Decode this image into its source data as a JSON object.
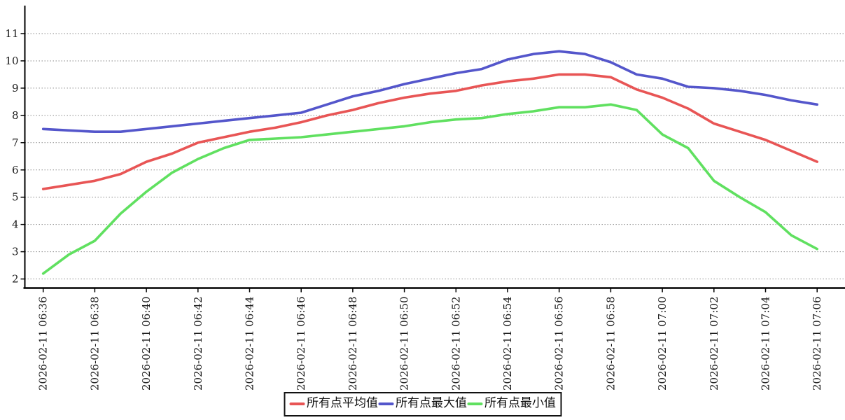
{
  "chart_data": {
    "type": "line",
    "title": "",
    "xlabel": "",
    "ylabel": "",
    "date_prefix": "2026-02-11",
    "x": [
      "06:36",
      "06:37",
      "06:38",
      "06:39",
      "06:40",
      "06:41",
      "06:42",
      "06:43",
      "06:44",
      "06:45",
      "06:46",
      "06:47",
      "06:48",
      "06:49",
      "06:50",
      "06:51",
      "06:52",
      "06:53",
      "06:54",
      "06:55",
      "06:56",
      "06:57",
      "06:58",
      "06:59",
      "07:00",
      "07:01",
      "07:02",
      "07:03",
      "07:04",
      "07:05",
      "07:06"
    ],
    "x_tick_labels": [
      "2026-02-11 06:36",
      "2026-02-11 06:38",
      "2026-02-11 06:40",
      "2026-02-11 06:42",
      "2026-02-11 06:44",
      "2026-02-11 06:46",
      "2026-02-11 06:48",
      "2026-02-11 06:50",
      "2026-02-11 06:52",
      "2026-02-11 06:54",
      "2026-02-11 06:56",
      "2026-02-11 06:58",
      "2026-02-11 07:00",
      "2026-02-11 07:02",
      "2026-02-11 07:04",
      "2026-02-11 07:06"
    ],
    "y_ticks": [
      2,
      3,
      4,
      5,
      6,
      7,
      8,
      9,
      10,
      11
    ],
    "ylim": [
      2,
      11
    ],
    "grid": "horizontal-dashed",
    "legend_position": "bottom-center",
    "series": [
      {
        "name": "所有点平均值",
        "color": "#e85555",
        "values": [
          5.3,
          5.45,
          5.6,
          5.85,
          6.3,
          6.6,
          7.0,
          7.2,
          7.4,
          7.55,
          7.75,
          8.0,
          8.2,
          8.45,
          8.65,
          8.8,
          8.9,
          9.1,
          9.25,
          9.35,
          9.5,
          9.5,
          9.4,
          8.95,
          8.65,
          8.25,
          7.7,
          7.4,
          7.1,
          6.7,
          6.3
        ]
      },
      {
        "name": "所有点最大值",
        "color": "#5456cb",
        "values": [
          7.5,
          7.45,
          7.4,
          7.4,
          7.5,
          7.6,
          7.7,
          7.8,
          7.9,
          8.0,
          8.1,
          8.4,
          8.7,
          8.9,
          9.15,
          9.35,
          9.55,
          9.7,
          10.05,
          10.25,
          10.35,
          10.25,
          9.95,
          9.5,
          9.35,
          9.05,
          9.0,
          8.9,
          8.75,
          8.55,
          8.4
        ]
      },
      {
        "name": "所有点最小值",
        "color": "#60e060",
        "values": [
          2.2,
          2.9,
          3.4,
          4.4,
          5.2,
          5.9,
          6.4,
          6.8,
          7.1,
          7.15,
          7.2,
          7.3,
          7.4,
          7.5,
          7.6,
          7.75,
          7.85,
          7.9,
          8.05,
          8.15,
          8.3,
          8.3,
          8.4,
          8.2,
          7.3,
          6.8,
          5.6,
          5.0,
          4.45,
          3.6,
          3.1
        ]
      }
    ]
  }
}
